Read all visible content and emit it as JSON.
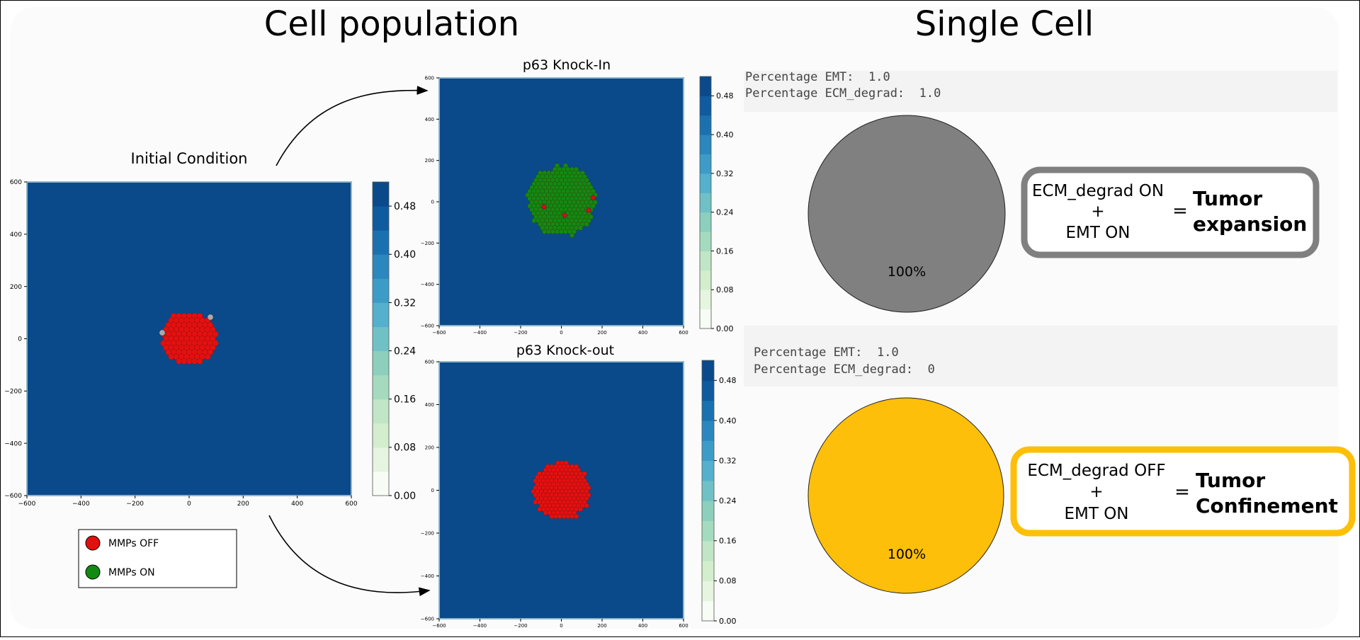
{
  "headers": {
    "left": "Cell population",
    "right": "Single Cell"
  },
  "colors": {
    "field": "#0a4a8a",
    "cell_red": "#e41010",
    "cell_green": "#118a11",
    "pie_grey": "#808080",
    "pie_yellow": "#fdbf0a",
    "box_grey": "#808080",
    "box_yellow": "#fdbf0a",
    "colorbar_ramp": [
      "#f7fcf5",
      "#e5f5e0",
      "#d3eecd",
      "#c0e6c7",
      "#a4dbbe",
      "#8ccfbd",
      "#70c1c6",
      "#54b0cd",
      "#3d9cc7",
      "#2b87bd",
      "#1a71b0",
      "#0e5ba0",
      "#0a4a8a"
    ]
  },
  "initial": {
    "title": "Initial Condition",
    "xticks": [
      "−600",
      "−400",
      "−200",
      "0",
      "200",
      "400",
      "600"
    ],
    "yticks": [
      "600",
      "400",
      "200",
      "0",
      "−200",
      "−400",
      "−600"
    ],
    "cbar_ticks": [
      "0.48",
      "0.40",
      "0.32",
      "0.24",
      "0.16",
      "0.08",
      "0.00"
    ]
  },
  "knock_in": {
    "title": "p63 Knock-In",
    "xticks": [
      "−600",
      "−400",
      "−200",
      "0",
      "200",
      "400",
      "600"
    ],
    "yticks": [
      "600",
      "400",
      "200",
      "0",
      "−200",
      "−400",
      "−600"
    ],
    "cbar_ticks": [
      "0.48",
      "0.40",
      "0.32",
      "0.24",
      "0.16",
      "0.08",
      "0.00"
    ]
  },
  "knock_out": {
    "title": "p63 Knock-out",
    "xticks": [
      "−600",
      "−400",
      "−200",
      "0",
      "200",
      "400",
      "600"
    ],
    "yticks": [
      "600",
      "400",
      "200",
      "0",
      "−200",
      "−400",
      "−600"
    ],
    "cbar_ticks": [
      "0.48",
      "0.40",
      "0.32",
      "0.24",
      "0.16",
      "0.08",
      "0.00"
    ]
  },
  "legend": {
    "items": [
      {
        "label": "MMPs OFF",
        "color": "#e41010"
      },
      {
        "label": "MMPs ON",
        "color": "#118a11"
      }
    ]
  },
  "single_top": {
    "emt_line": "Percentage EMT:  1.0",
    "ecm_line": "Percentage ECM_degrad:  1.0",
    "pie_label": "100%",
    "box_line1": "ECM_degrad ON",
    "box_plus": "+",
    "box_line2": "EMT ON",
    "equals": "=",
    "result_line1": "Tumor",
    "result_line2": "expansion"
  },
  "single_bottom": {
    "emt_line": "Percentage EMT:  1.0",
    "ecm_line": "Percentage ECM_degrad:  0",
    "pie_label": "100%",
    "box_line1": "ECM_degrad OFF",
    "box_plus": "+",
    "box_line2": "EMT ON",
    "equals": "=",
    "result_line1": "Tumor",
    "result_line2": "Confinement"
  }
}
